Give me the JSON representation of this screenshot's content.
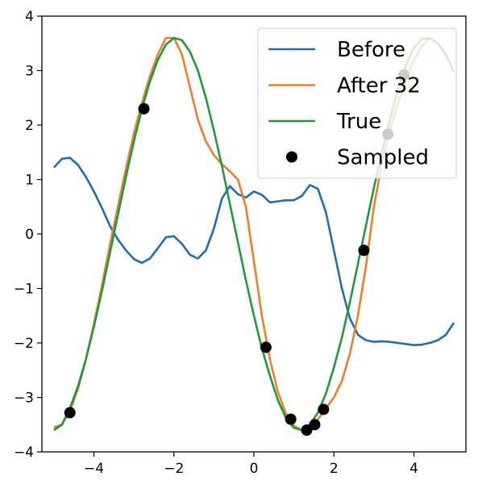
{
  "chart_data": {
    "type": "line",
    "xlim": [
      -5.3,
      5.3
    ],
    "ylim": [
      -4,
      4
    ],
    "xticks": [
      -4,
      -2,
      0,
      2,
      4
    ],
    "yticks": [
      -4,
      -3,
      -2,
      -1,
      0,
      1,
      2,
      3,
      4
    ],
    "xtick_labels": [
      "−4",
      "−2",
      "0",
      "2",
      "4"
    ],
    "ytick_labels": [
      "−4",
      "−3",
      "−2",
      "−1",
      "0",
      "1",
      "2",
      "3",
      "4"
    ],
    "grid": false,
    "legend_position": "top-right",
    "series": [
      {
        "name": "Before",
        "color": "#1f6fb0",
        "x": [
          -5.0,
          -4.8,
          -4.6,
          -4.4,
          -4.2,
          -4.0,
          -3.8,
          -3.6,
          -3.4,
          -3.2,
          -3.0,
          -2.8,
          -2.6,
          -2.4,
          -2.2,
          -2.0,
          -1.8,
          -1.6,
          -1.4,
          -1.2,
          -1.0,
          -0.8,
          -0.6,
          -0.4,
          -0.2,
          0.0,
          0.2,
          0.4,
          0.6,
          0.8,
          1.0,
          1.2,
          1.4,
          1.6,
          1.8,
          2.0,
          2.2,
          2.4,
          2.6,
          2.8,
          3.0,
          3.2,
          3.4,
          3.6,
          3.8,
          4.0,
          4.2,
          4.4,
          4.6,
          4.8,
          5.0
        ],
        "y": [
          1.22,
          1.38,
          1.4,
          1.27,
          1.05,
          0.78,
          0.48,
          0.15,
          -0.1,
          -0.3,
          -0.46,
          -0.53,
          -0.45,
          -0.26,
          -0.06,
          -0.04,
          -0.18,
          -0.38,
          -0.45,
          -0.3,
          0.1,
          0.65,
          0.88,
          0.73,
          0.67,
          0.78,
          0.72,
          0.58,
          0.6,
          0.62,
          0.62,
          0.7,
          0.9,
          0.83,
          0.4,
          -0.3,
          -1.0,
          -1.55,
          -1.85,
          -1.95,
          -1.98,
          -1.97,
          -1.98,
          -2.0,
          -2.02,
          -2.04,
          -2.03,
          -2.0,
          -1.95,
          -1.85,
          -1.63
        ]
      },
      {
        "name": "After 32",
        "color": "#f07d2c",
        "x": [
          -5.0,
          -4.8,
          -4.6,
          -4.4,
          -4.2,
          -4.0,
          -3.8,
          -3.6,
          -3.4,
          -3.2,
          -3.0,
          -2.8,
          -2.6,
          -2.4,
          -2.2,
          -2.0,
          -1.8,
          -1.6,
          -1.4,
          -1.2,
          -1.0,
          -0.8,
          -0.6,
          -0.4,
          -0.2,
          0.0,
          0.2,
          0.4,
          0.6,
          0.8,
          1.0,
          1.2,
          1.4,
          1.6,
          1.8,
          2.0,
          2.2,
          2.4,
          2.6,
          2.8,
          3.0,
          3.2,
          3.4,
          3.6,
          3.8,
          4.0,
          4.2,
          4.4,
          4.6,
          4.8,
          5.0
        ],
        "y": [
          -3.55,
          -3.5,
          -3.25,
          -2.85,
          -2.3,
          -1.65,
          -0.95,
          -0.2,
          0.5,
          1.2,
          1.85,
          2.4,
          2.9,
          3.3,
          3.6,
          3.6,
          3.3,
          2.7,
          2.1,
          1.7,
          1.45,
          1.28,
          1.15,
          1.0,
          0.5,
          -0.5,
          -1.5,
          -2.3,
          -2.9,
          -3.3,
          -3.52,
          -3.6,
          -3.55,
          -3.4,
          -3.2,
          -3.0,
          -2.7,
          -2.2,
          -1.5,
          -0.6,
          0.5,
          1.3,
          1.9,
          2.4,
          2.85,
          3.2,
          3.45,
          3.6,
          3.5,
          3.3,
          2.97
        ]
      },
      {
        "name": "True",
        "color": "#1e9a3c",
        "x": [
          -5.0,
          -4.8,
          -4.6,
          -4.4,
          -4.2,
          -4.0,
          -3.8,
          -3.6,
          -3.4,
          -3.2,
          -3.0,
          -2.8,
          -2.6,
          -2.4,
          -2.2,
          -2.0,
          -1.8,
          -1.6,
          -1.4,
          -1.2,
          -1.0,
          -0.8,
          -0.6,
          -0.4,
          -0.2,
          0.0,
          0.2,
          0.4,
          0.6,
          0.8,
          1.0,
          1.2,
          1.4,
          1.6,
          1.8,
          2.0,
          2.2,
          2.4,
          2.6,
          2.8,
          3.0,
          3.2,
          3.4,
          3.6,
          3.8,
          4.0,
          4.2,
          4.4,
          4.6,
          4.8,
          5.0
        ],
        "y": [
          -3.6,
          -3.5,
          -3.2,
          -2.8,
          -2.3,
          -1.7,
          -1.05,
          -0.35,
          0.35,
          1.05,
          1.7,
          2.3,
          2.8,
          3.2,
          3.48,
          3.6,
          3.56,
          3.35,
          3.0,
          2.5,
          1.9,
          1.25,
          0.55,
          -0.15,
          -0.85,
          -1.5,
          -2.1,
          -2.6,
          -3.05,
          -3.38,
          -3.56,
          -3.6,
          -3.5,
          -3.28,
          -2.93,
          -2.45,
          -1.9,
          -1.25,
          -0.55,
          0.15,
          0.85,
          1.5,
          2.1,
          2.65,
          3.1,
          3.42,
          3.58,
          3.6,
          3.5,
          3.28,
          2.97
        ]
      },
      {
        "name": "Sampled",
        "color": "#000000",
        "marker": "circle",
        "x": [
          -4.6,
          -2.75,
          0.3,
          0.92,
          1.32,
          1.52,
          1.74,
          2.75,
          3.35,
          3.75
        ],
        "y": [
          -3.28,
          2.3,
          -2.08,
          -3.4,
          -3.6,
          -3.5,
          -3.22,
          -0.3,
          1.83,
          2.92
        ]
      }
    ]
  }
}
